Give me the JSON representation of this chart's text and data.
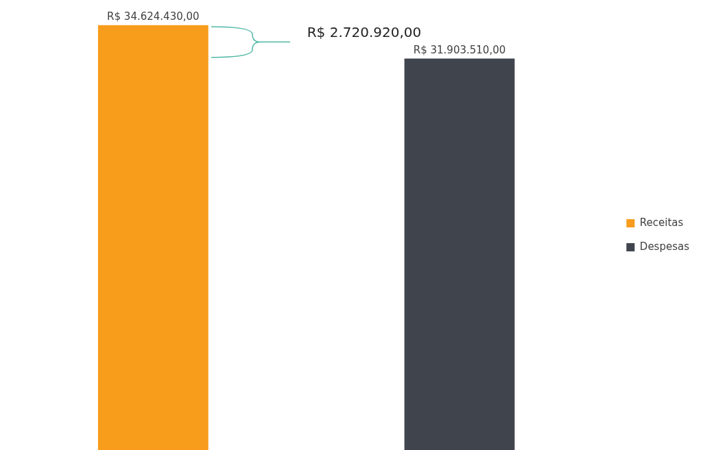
{
  "chart_data": {
    "type": "bar",
    "categories": [
      null,
      null
    ],
    "stacked": true,
    "series": [
      {
        "name": "Receitas",
        "color": "#f89c1c",
        "values": [
          34624430,
          null
        ],
        "value_labels": [
          "R$ 34.624.430,00",
          null
        ]
      },
      {
        "name": "Despesas",
        "color": "#40454d",
        "values": [
          null,
          31903510
        ],
        "value_labels": [
          null,
          "R$ 31.903.510,00"
        ]
      }
    ],
    "legend": "right",
    "annotations": [
      "R$ 2.720.920,00"
    ]
  }
}
